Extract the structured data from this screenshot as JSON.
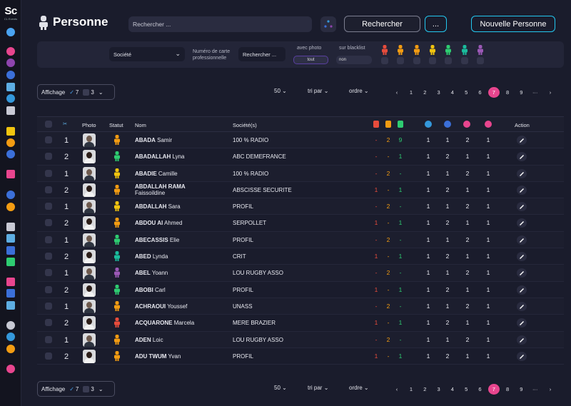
{
  "app": {
    "logo": "Sc",
    "logo_sub": "CL Events"
  },
  "header": {
    "title": "Personne",
    "search_placeholder": "Rechercher ...",
    "search_button": "Rechercher",
    "more_button": "...",
    "new_button": "Nouvelle Personne"
  },
  "filters": {
    "societe": "Société",
    "carte_label_1": "Numéro de carte",
    "carte_label_2": "professionnelle",
    "carte_placeholder": "Rechercher ...",
    "photo_label": "avec photo",
    "photo_value": "tout",
    "blacklist_label": "sur blacklist",
    "blacklist_value": "non",
    "status_colors": [
      "#e74c3c",
      "#f39c12",
      "#f39c12",
      "#f1c40f",
      "#2ecc71",
      "#1abc9c",
      "#9b59b6"
    ]
  },
  "toolbar": {
    "affichage": "Affichage",
    "aff_v1": "7",
    "aff_v2": "3",
    "per_page": "50",
    "tri": "tri par",
    "ordre": "ordre",
    "pages": [
      "1",
      "2",
      "3",
      "4",
      "5",
      "6",
      "7",
      "8",
      "9",
      "···"
    ],
    "active_page": "7"
  },
  "table": {
    "headers": {
      "photo": "Photo",
      "statut": "Statut",
      "nom": "Nom",
      "societe": "Société(s)",
      "action": "Action"
    },
    "header_icon_colors": [
      "#e74c3c",
      "#f39c12",
      "#2ecc71",
      "#3498db",
      "#3b6fd8",
      "#e8458e",
      "#e8458e"
    ],
    "rows": [
      {
        "n": "1",
        "last": "ABADA",
        "first": "Samir",
        "last2": "",
        "soc": "100 % RADIO",
        "g": "m",
        "stat": "#f39c12",
        "a": "-",
        "b": "2",
        "c": "9",
        "ca": "#e74c3c",
        "cb": "#f39c12",
        "cc": "#2ecc71",
        "d": "1",
        "e": "1",
        "f": "2",
        "h": "1"
      },
      {
        "n": "2",
        "last": "ABADALLAH",
        "first": "Lyna",
        "last2": "",
        "soc": "ABC DEMEFRANCE",
        "g": "f",
        "stat": "#2ecc71",
        "a": "-",
        "b": "-",
        "c": "1",
        "ca": "#e74c3c",
        "cb": "#f39c12",
        "cc": "#2ecc71",
        "d": "1",
        "e": "2",
        "f": "1",
        "h": "1"
      },
      {
        "n": "1",
        "last": "ABADIE",
        "first": "Camille",
        "last2": "",
        "soc": "100 % RADIO",
        "g": "m",
        "stat": "#f1c40f",
        "a": "-",
        "b": "2",
        "c": "-",
        "ca": "#e74c3c",
        "cb": "#f39c12",
        "cc": "#2ecc71",
        "d": "1",
        "e": "1",
        "f": "2",
        "h": "1"
      },
      {
        "n": "2",
        "last": "ABDALLAH RAMA",
        "first": "Faissoildine",
        "last2": "",
        "soc": "ABSCISSE SECURITE",
        "g": "f",
        "stat": "#f39c12",
        "a": "1",
        "b": "-",
        "c": "1",
        "ca": "#e74c3c",
        "cb": "#f39c12",
        "cc": "#2ecc71",
        "d": "1",
        "e": "2",
        "f": "1",
        "h": "1"
      },
      {
        "n": "1",
        "last": "ABDALLAH",
        "first": "Sara",
        "last2": "",
        "soc": "PROFIL",
        "g": "m",
        "stat": "#f1c40f",
        "a": "-",
        "b": "2",
        "c": "-",
        "ca": "#e74c3c",
        "cb": "#f39c12",
        "cc": "#2ecc71",
        "d": "1",
        "e": "1",
        "f": "2",
        "h": "1"
      },
      {
        "n": "2",
        "last": "ABDOU AI",
        "first": "Ahmed",
        "last2": "",
        "soc": "SERPOLLET",
        "g": "f",
        "stat": "#f39c12",
        "a": "1",
        "b": "-",
        "c": "1",
        "ca": "#e74c3c",
        "cb": "#f39c12",
        "cc": "#2ecc71",
        "d": "1",
        "e": "2",
        "f": "1",
        "h": "1"
      },
      {
        "n": "1",
        "last": "ABECASSIS",
        "first": "Elie",
        "last2": "",
        "soc": "PROFIL",
        "g": "m",
        "stat": "#2ecc71",
        "a": "-",
        "b": "2",
        "c": "-",
        "ca": "#e74c3c",
        "cb": "#f39c12",
        "cc": "#2ecc71",
        "d": "1",
        "e": "1",
        "f": "2",
        "h": "1"
      },
      {
        "n": "2",
        "last": "ABED",
        "first": "Lynda",
        "last2": "",
        "soc": "CRIT",
        "g": "f",
        "stat": "#1abc9c",
        "a": "1",
        "b": "-",
        "c": "1",
        "ca": "#e74c3c",
        "cb": "#f39c12",
        "cc": "#2ecc71",
        "d": "1",
        "e": "2",
        "f": "1",
        "h": "1"
      },
      {
        "n": "1",
        "last": "ABEL",
        "first": "Yoann",
        "last2": "",
        "soc": "LOU RUGBY ASSO",
        "g": "m",
        "stat": "#9b59b6",
        "a": "-",
        "b": "2",
        "c": "-",
        "ca": "#e74c3c",
        "cb": "#f39c12",
        "cc": "#2ecc71",
        "d": "1",
        "e": "1",
        "f": "2",
        "h": "1"
      },
      {
        "n": "2",
        "last": "ABOBI",
        "first": "Carl",
        "last2": "",
        "soc": "PROFIL",
        "g": "f",
        "stat": "#2ecc71",
        "a": "1",
        "b": "-",
        "c": "1",
        "ca": "#e74c3c",
        "cb": "#f39c12",
        "cc": "#2ecc71",
        "d": "1",
        "e": "2",
        "f": "1",
        "h": "1"
      },
      {
        "n": "1",
        "last": "ACHRAOUI",
        "first": "Youssef",
        "last2": "",
        "soc": "UNASS",
        "g": "m",
        "stat": "#f39c12",
        "a": "-",
        "b": "2",
        "c": "-",
        "ca": "#e74c3c",
        "cb": "#f39c12",
        "cc": "#2ecc71",
        "d": "1",
        "e": "1",
        "f": "2",
        "h": "1"
      },
      {
        "n": "2",
        "last": "ACQUARONE",
        "first": "Marcela",
        "last2": "",
        "soc": "MERE BRAZIER",
        "g": "f",
        "stat": "#e74c3c",
        "a": "1",
        "b": "-",
        "c": "1",
        "ca": "#e74c3c",
        "cb": "#f39c12",
        "cc": "#2ecc71",
        "d": "1",
        "e": "2",
        "f": "1",
        "h": "1"
      },
      {
        "n": "1",
        "last": "ADEN",
        "first": "Loic",
        "last2": "",
        "soc": "LOU RUGBY ASSO",
        "g": "m",
        "stat": "#f39c12",
        "a": "-",
        "b": "2",
        "c": "-",
        "ca": "#e74c3c",
        "cb": "#f39c12",
        "cc": "#2ecc71",
        "d": "1",
        "e": "1",
        "f": "2",
        "h": "1"
      },
      {
        "n": "2",
        "last": "ADU TWUM",
        "first": "Yvan",
        "last2": "",
        "soc": "PROFIL",
        "g": "f",
        "stat": "#f39c12",
        "a": "1",
        "b": "-",
        "c": "1",
        "ca": "#e74c3c",
        "cb": "#f39c12",
        "cc": "#2ecc71",
        "d": "1",
        "e": "2",
        "f": "1",
        "h": "1"
      }
    ]
  }
}
